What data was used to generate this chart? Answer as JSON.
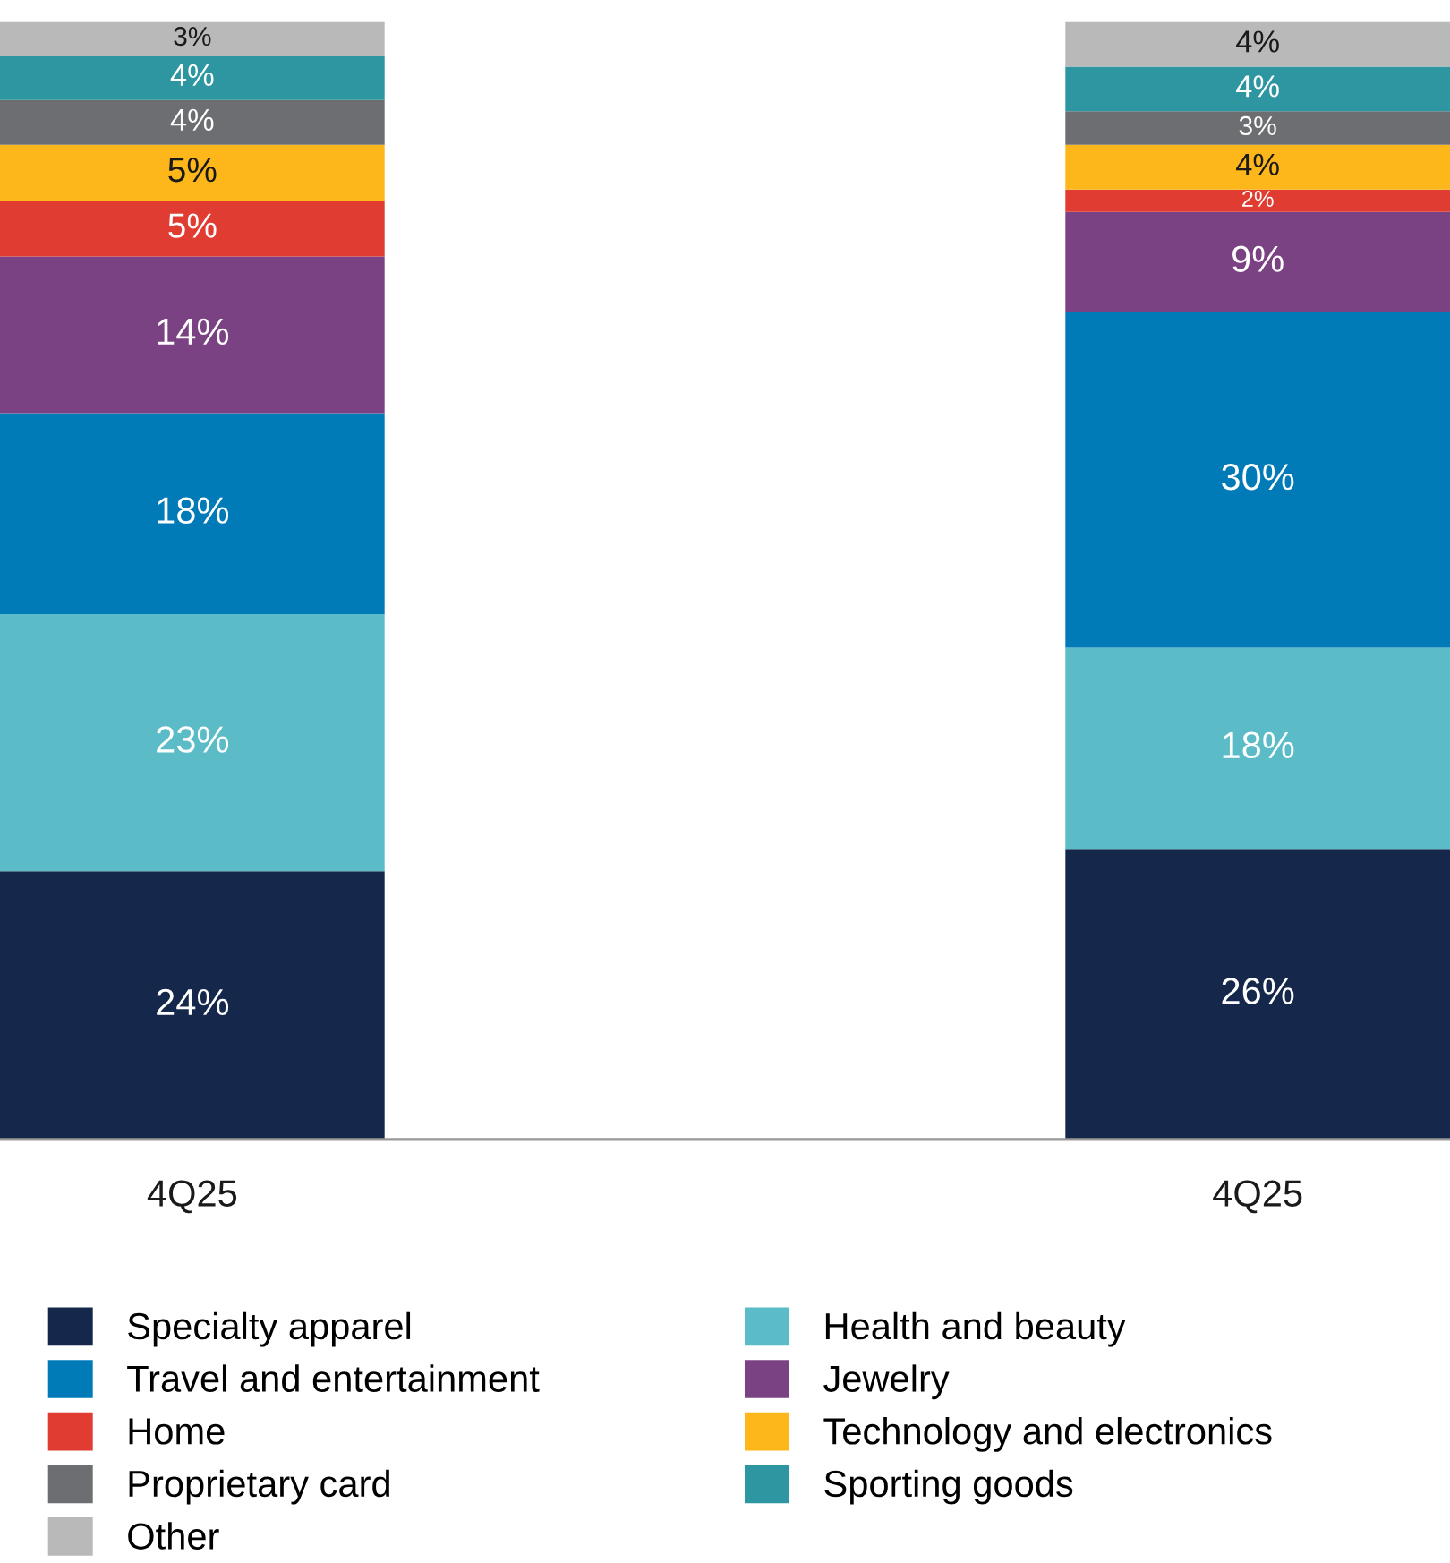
{
  "chart_data": {
    "type": "bar",
    "stacked": true,
    "legend": "bottom",
    "grid": false,
    "tick_labels": "x",
    "categories": [
      "4Q25",
      "4Q25"
    ],
    "series": [
      {
        "name": "Specialty apparel",
        "color": "#15284b",
        "values": [
          24,
          26
        ],
        "value_labels": [
          "24%",
          "26%"
        ]
      },
      {
        "name": "Health and beauty",
        "color": "#5bbcc8",
        "values": [
          23,
          18
        ],
        "value_labels": [
          "23%",
          "18%"
        ]
      },
      {
        "name": "Travel and entertainment",
        "color": "#007bb8",
        "values": [
          18,
          30
        ],
        "value_labels": [
          "18%",
          "30%"
        ]
      },
      {
        "name": "Jewelry",
        "color": "#7b4283",
        "values": [
          14,
          9
        ],
        "value_labels": [
          "14%",
          "9%"
        ]
      },
      {
        "name": "Home",
        "color": "#e03c31",
        "values": [
          5,
          2
        ],
        "value_labels": [
          "5%",
          "2%"
        ]
      },
      {
        "name": "Technology and electronics",
        "color": "#fdb71a",
        "values": [
          5,
          4
        ],
        "value_labels": [
          "5%",
          "4%"
        ]
      },
      {
        "name": "Proprietary card",
        "color": "#6d6e71",
        "values": [
          4,
          3
        ],
        "value_labels": [
          "4%",
          "3%"
        ]
      },
      {
        "name": "Sporting goods",
        "color": "#2d96a0",
        "values": [
          4,
          4
        ],
        "value_labels": [
          "4%",
          "4%"
        ]
      },
      {
        "name": "Other",
        "color": "#b9b9b9",
        "values": [
          3,
          4
        ],
        "value_labels": [
          "3%",
          "4%"
        ]
      }
    ]
  }
}
